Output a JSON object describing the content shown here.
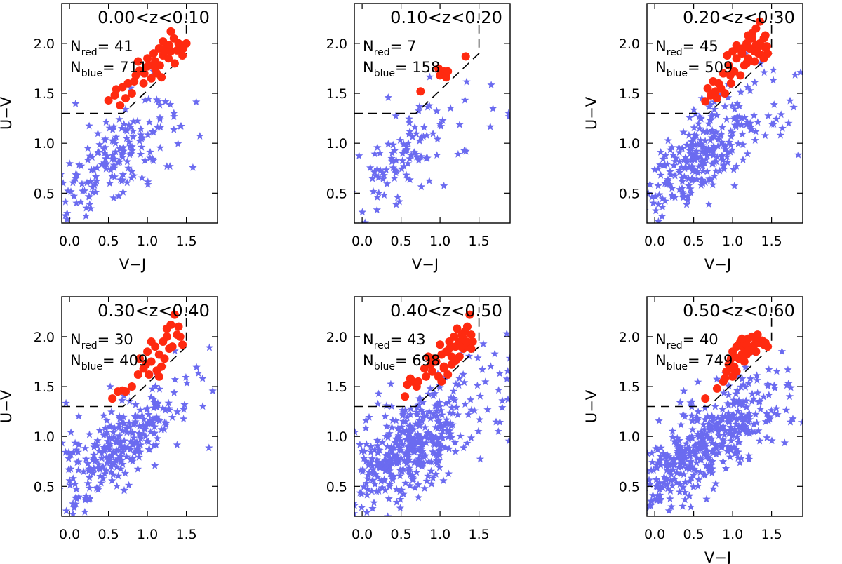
{
  "colors": {
    "blue": "#6b6bf0",
    "red": "#ff2a10",
    "axis": "#000000",
    "selection_line": "#000000"
  },
  "chart_data": [
    {
      "type": "scatter",
      "title": "0.00<z<0.10",
      "xlabel": "V−J",
      "ylabel": "U−V",
      "xlim": [
        -0.1,
        1.9
      ],
      "ylim": [
        0.2,
        2.4
      ],
      "xticks": [
        0.0,
        0.5,
        1.0,
        1.5
      ],
      "xtick_labels": [
        "0.0",
        "0.5",
        "1.0",
        "1.5"
      ],
      "yticks": [
        0.5,
        1.0,
        1.5,
        2.0
      ],
      "ytick_labels": [
        "0.5",
        "1.0",
        "1.5",
        "2.0"
      ],
      "selection_boundary": [
        [
          -0.1,
          1.3
        ],
        [
          0.69,
          1.3
        ],
        [
          1.5,
          1.9
        ],
        [
          1.5,
          2.3
        ]
      ],
      "n_red_label": "N",
      "n_red_sub": "red",
      "n_red_value": "41",
      "n_blue_label": "N",
      "n_blue_sub": "blue",
      "n_blue_value": "711",
      "red_points": [
        [
          0.5,
          1.43
        ],
        [
          0.6,
          1.54
        ],
        [
          0.65,
          1.38
        ],
        [
          0.68,
          1.56
        ],
        [
          0.75,
          1.6
        ],
        [
          0.8,
          1.5
        ],
        [
          0.85,
          1.68
        ],
        [
          0.9,
          1.73
        ],
        [
          0.95,
          1.6
        ],
        [
          1.0,
          1.77
        ],
        [
          1.05,
          1.65
        ],
        [
          1.1,
          1.82
        ],
        [
          1.12,
          1.7
        ],
        [
          1.15,
          1.95
        ],
        [
          1.2,
          1.88
        ],
        [
          1.25,
          1.98
        ],
        [
          1.3,
          1.92
        ],
        [
          1.3,
          2.12
        ],
        [
          1.35,
          1.8
        ],
        [
          1.4,
          2.0
        ],
        [
          1.45,
          1.88
        ],
        [
          1.5,
          2.0
        ],
        [
          1.2,
          2.02
        ],
        [
          1.0,
          1.85
        ],
        [
          0.88,
          1.82
        ],
        [
          1.08,
          1.9
        ],
        [
          1.38,
          1.93
        ],
        [
          0.72,
          1.45
        ],
        [
          1.18,
          1.66
        ],
        [
          1.27,
          1.85
        ],
        [
          1.42,
          1.96
        ],
        [
          0.96,
          1.7
        ],
        [
          1.34,
          2.05
        ],
        [
          0.58,
          1.48
        ],
        [
          1.03,
          1.78
        ],
        [
          1.16,
          1.78
        ],
        [
          1.22,
          1.92
        ],
        [
          1.46,
          1.95
        ],
        [
          0.83,
          1.62
        ],
        [
          1.1,
          1.75
        ],
        [
          1.28,
          1.98
        ]
      ]
    },
    {
      "type": "scatter",
      "title": "0.10<z<0.20",
      "xlabel": "V−J",
      "ylabel": "",
      "xlim": [
        -0.1,
        1.9
      ],
      "ylim": [
        0.2,
        2.4
      ],
      "xticks": [
        0.0,
        0.5,
        1.0,
        1.5
      ],
      "xtick_labels": [
        "0.0",
        "0.5",
        "1.0",
        "1.5"
      ],
      "yticks": [
        0.5,
        1.0,
        1.5,
        2.0
      ],
      "ytick_labels": [
        "0.5",
        "1.0",
        "1.5",
        "2.0"
      ],
      "selection_boundary": [
        [
          -0.1,
          1.3
        ],
        [
          0.69,
          1.3
        ],
        [
          1.5,
          1.9
        ],
        [
          1.5,
          2.3
        ]
      ],
      "n_red_label": "N",
      "n_red_sub": "red",
      "n_red_value": "7",
      "n_blue_label": "N",
      "n_blue_sub": "blue",
      "n_blue_value": "158",
      "red_points": [
        [
          0.75,
          1.52
        ],
        [
          1.0,
          1.68
        ],
        [
          1.05,
          1.72
        ],
        [
          1.08,
          1.66
        ],
        [
          1.1,
          1.72
        ],
        [
          1.33,
          1.87
        ],
        [
          0.98,
          1.75
        ]
      ]
    },
    {
      "type": "scatter",
      "title": "0.20<z<0.30",
      "xlabel": "V−J",
      "ylabel": "U−V",
      "xlim": [
        -0.1,
        1.9
      ],
      "ylim": [
        0.2,
        2.4
      ],
      "xticks": [
        0.0,
        0.5,
        1.0,
        1.5
      ],
      "xtick_labels": [
        "0.0",
        "0.5",
        "1.0",
        "1.5"
      ],
      "yticks": [
        0.5,
        1.0,
        1.5,
        2.0
      ],
      "ytick_labels": [
        "0.5",
        "1.0",
        "1.5",
        "2.0"
      ],
      "selection_boundary": [
        [
          -0.1,
          1.3
        ],
        [
          0.69,
          1.3
        ],
        [
          1.5,
          1.9
        ],
        [
          1.5,
          2.3
        ]
      ],
      "n_red_label": "N",
      "n_red_sub": "red",
      "n_red_value": "45",
      "n_blue_label": "N",
      "n_blue_sub": "blue",
      "n_blue_value": "509",
      "red_points": [
        [
          0.65,
          1.42
        ],
        [
          0.68,
          1.55
        ],
        [
          0.72,
          1.48
        ],
        [
          0.75,
          1.62
        ],
        [
          0.8,
          1.45
        ],
        [
          0.85,
          1.55
        ],
        [
          0.88,
          1.7
        ],
        [
          0.9,
          1.5
        ],
        [
          0.95,
          1.78
        ],
        [
          0.98,
          1.6
        ],
        [
          1.0,
          1.92
        ],
        [
          1.02,
          1.72
        ],
        [
          1.05,
          1.85
        ],
        [
          1.1,
          1.68
        ],
        [
          1.12,
          1.9
        ],
        [
          1.15,
          1.78
        ],
        [
          1.18,
          2.0
        ],
        [
          1.2,
          1.85
        ],
        [
          1.22,
          1.95
        ],
        [
          1.25,
          2.05
        ],
        [
          1.28,
          1.82
        ],
        [
          1.3,
          2.15
        ],
        [
          1.32,
          1.95
        ],
        [
          1.35,
          2.22
        ],
        [
          1.38,
          1.88
        ],
        [
          1.4,
          2.05
        ],
        [
          1.42,
          1.96
        ],
        [
          1.45,
          1.9
        ],
        [
          1.3,
          1.98
        ],
        [
          1.25,
          2.1
        ],
        [
          1.35,
          2.0
        ],
        [
          0.93,
          1.88
        ],
        [
          1.08,
          1.95
        ],
        [
          1.4,
          1.85
        ],
        [
          1.18,
          1.8
        ],
        [
          0.82,
          1.6
        ],
        [
          1.28,
          1.92
        ],
        [
          1.42,
          2.08
        ],
        [
          0.78,
          1.52
        ],
        [
          1.05,
          1.98
        ],
        [
          1.2,
          2.08
        ],
        [
          1.33,
          1.9
        ],
        [
          0.97,
          1.68
        ],
        [
          1.15,
          1.96
        ],
        [
          1.44,
          1.97
        ]
      ]
    },
    {
      "type": "scatter",
      "title": "0.30<z<0.40",
      "xlabel": "",
      "ylabel": "U−V",
      "xlim": [
        -0.1,
        1.9
      ],
      "ylim": [
        0.2,
        2.4
      ],
      "xticks": [
        0.0,
        0.5,
        1.0,
        1.5
      ],
      "xtick_labels": [
        "0.0",
        "0.5",
        "1.0",
        "1.5"
      ],
      "yticks": [
        0.5,
        1.0,
        1.5,
        2.0
      ],
      "ytick_labels": [
        "0.5",
        "1.0",
        "1.5",
        "2.0"
      ],
      "selection_boundary": [
        [
          -0.1,
          1.3
        ],
        [
          0.69,
          1.3
        ],
        [
          1.5,
          1.9
        ],
        [
          1.5,
          2.3
        ]
      ],
      "n_red_label": "N",
      "n_red_sub": "red",
      "n_red_value": "30",
      "n_blue_label": "N",
      "n_blue_sub": "blue",
      "n_blue_value": "409",
      "red_points": [
        [
          0.55,
          1.38
        ],
        [
          0.62,
          1.45
        ],
        [
          0.68,
          1.46
        ],
        [
          0.72,
          1.45
        ],
        [
          0.8,
          1.5
        ],
        [
          0.88,
          1.62
        ],
        [
          0.9,
          1.78
        ],
        [
          0.95,
          1.68
        ],
        [
          1.0,
          1.85
        ],
        [
          1.02,
          1.62
        ],
        [
          1.05,
          1.75
        ],
        [
          1.1,
          1.9
        ],
        [
          1.12,
          1.66
        ],
        [
          1.15,
          1.82
        ],
        [
          1.2,
          1.95
        ],
        [
          1.22,
          1.78
        ],
        [
          1.25,
          2.0
        ],
        [
          1.28,
          1.88
        ],
        [
          1.3,
          2.12
        ],
        [
          1.32,
          1.9
        ],
        [
          1.35,
          2.22
        ],
        [
          1.38,
          2.02
        ],
        [
          1.4,
          2.1
        ],
        [
          1.45,
          1.92
        ],
        [
          1.15,
          1.6
        ],
        [
          1.05,
          1.95
        ],
        [
          1.25,
          2.08
        ],
        [
          0.98,
          1.72
        ],
        [
          1.18,
          1.7
        ],
        [
          1.42,
          2.0
        ]
      ]
    },
    {
      "type": "scatter",
      "title": "0.40<z<0.50",
      "xlabel": "",
      "ylabel": "",
      "xlim": [
        -0.1,
        1.9
      ],
      "ylim": [
        0.2,
        2.4
      ],
      "xticks": [
        0.0,
        0.5,
        1.0,
        1.5
      ],
      "xtick_labels": [
        "0.0",
        "0.5",
        "1.0",
        "1.5"
      ],
      "yticks": [
        0.5,
        1.0,
        1.5,
        2.0
      ],
      "ytick_labels": [
        "0.5",
        "1.0",
        "1.5",
        "2.0"
      ],
      "selection_boundary": [
        [
          -0.1,
          1.3
        ],
        [
          0.69,
          1.3
        ],
        [
          1.5,
          1.9
        ],
        [
          1.5,
          2.3
        ]
      ],
      "n_red_label": "N",
      "n_red_sub": "red",
      "n_red_value": "43",
      "n_blue_label": "N",
      "n_blue_sub": "blue",
      "n_blue_value": "698",
      "red_points": [
        [
          0.55,
          1.4
        ],
        [
          0.58,
          1.52
        ],
        [
          0.65,
          1.55
        ],
        [
          0.7,
          1.5
        ],
        [
          0.72,
          1.55
        ],
        [
          0.8,
          1.68
        ],
        [
          0.85,
          1.8
        ],
        [
          0.88,
          1.72
        ],
        [
          0.9,
          1.65
        ],
        [
          0.95,
          1.75
        ],
        [
          0.98,
          1.6
        ],
        [
          1.0,
          1.92
        ],
        [
          1.02,
          1.55
        ],
        [
          1.05,
          1.7
        ],
        [
          1.08,
          1.85
        ],
        [
          1.1,
          1.62
        ],
        [
          1.12,
          1.95
        ],
        [
          1.15,
          1.8
        ],
        [
          1.18,
          2.0
        ],
        [
          1.2,
          1.9
        ],
        [
          1.22,
          2.08
        ],
        [
          1.25,
          1.95
        ],
        [
          1.28,
          2.02
        ],
        [
          1.3,
          1.88
        ],
        [
          1.32,
          2.05
        ],
        [
          1.35,
          1.92
        ],
        [
          1.38,
          2.22
        ],
        [
          1.4,
          1.88
        ],
        [
          1.42,
          1.95
        ],
        [
          1.25,
          1.8
        ],
        [
          1.15,
          1.72
        ],
        [
          1.05,
          1.68
        ],
        [
          0.92,
          1.78
        ],
        [
          1.3,
          1.98
        ],
        [
          1.35,
          2.1
        ],
        [
          0.62,
          1.58
        ],
        [
          1.12,
          1.88
        ],
        [
          1.2,
          1.76
        ],
        [
          1.4,
          2.02
        ],
        [
          0.82,
          1.6
        ],
        [
          1.27,
          1.9
        ],
        [
          1.02,
          1.82
        ],
        [
          1.34,
          1.95
        ]
      ]
    },
    {
      "type": "scatter",
      "title": "0.50<z<0.60",
      "xlabel": "V−J",
      "ylabel": "U−V",
      "xlim": [
        -0.1,
        1.9
      ],
      "ylim": [
        0.2,
        2.4
      ],
      "xticks": [
        0.0,
        0.5,
        1.0,
        1.5
      ],
      "xtick_labels": [
        "0.0",
        "0.5",
        "1.0",
        "1.5"
      ],
      "yticks": [
        0.5,
        1.0,
        1.5,
        2.0
      ],
      "ytick_labels": [
        "0.5",
        "1.0",
        "1.5",
        "2.0"
      ],
      "selection_boundary": [
        [
          -0.1,
          1.3
        ],
        [
          0.69,
          1.3
        ],
        [
          1.5,
          1.9
        ],
        [
          1.5,
          2.3
        ]
      ],
      "n_red_label": "N",
      "n_red_sub": "red",
      "n_red_value": "40",
      "n_blue_label": "N",
      "n_blue_sub": "blue",
      "n_blue_value": "749",
      "red_points": [
        [
          0.65,
          1.38
        ],
        [
          0.8,
          1.48
        ],
        [
          0.88,
          1.55
        ],
        [
          0.92,
          1.65
        ],
        [
          0.95,
          1.72
        ],
        [
          0.98,
          1.78
        ],
        [
          1.0,
          1.85
        ],
        [
          1.02,
          1.7
        ],
        [
          1.05,
          1.9
        ],
        [
          1.08,
          1.78
        ],
        [
          1.1,
          1.95
        ],
        [
          1.12,
          1.82
        ],
        [
          1.15,
          1.88
        ],
        [
          1.18,
          1.92
        ],
        [
          1.2,
          1.98
        ],
        [
          1.22,
          1.85
        ],
        [
          1.25,
          2.0
        ],
        [
          1.28,
          1.92
        ],
        [
          1.3,
          1.98
        ],
        [
          1.32,
          2.02
        ],
        [
          1.35,
          1.95
        ],
        [
          1.4,
          1.92
        ],
        [
          1.45,
          1.9
        ],
        [
          1.0,
          1.6
        ],
        [
          0.98,
          1.68
        ],
        [
          1.05,
          1.65
        ],
        [
          1.15,
          1.75
        ],
        [
          1.25,
          1.88
        ],
        [
          1.3,
          1.85
        ],
        [
          1.38,
          1.96
        ],
        [
          1.08,
          1.92
        ],
        [
          1.2,
          1.86
        ],
        [
          0.9,
          1.58
        ],
        [
          1.12,
          1.98
        ],
        [
          1.34,
          1.94
        ],
        [
          1.02,
          1.8
        ],
        [
          1.18,
          1.82
        ],
        [
          1.28,
          2.0
        ],
        [
          1.42,
          1.94
        ],
        [
          0.96,
          1.74
        ]
      ]
    }
  ]
}
